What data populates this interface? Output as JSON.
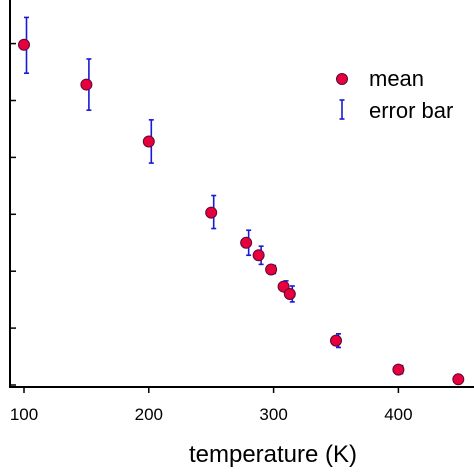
{
  "chart_data": {
    "type": "scatter",
    "xlabel": "temperature (K)",
    "ylabel": "",
    "xlim": [
      100,
      450
    ],
    "ylim": [
      0,
      6.6
    ],
    "x_ticks": [
      100,
      200,
      300,
      400
    ],
    "x_tick_labels": [
      "100",
      "200",
      "300",
      "400"
    ],
    "y_ticks": [
      0,
      1,
      2,
      3,
      4,
      5,
      6
    ],
    "legend": {
      "position": "top-right",
      "entries": [
        {
          "label": "mean",
          "marker": "circle"
        },
        {
          "label": "error bar",
          "marker": "errorbar"
        }
      ]
    },
    "colors": {
      "marker_fill": "#e8003d",
      "marker_edge": "#5a0a3a",
      "error_bar": "#1a1ad4"
    },
    "series": [
      {
        "name": "mean",
        "x": [
          100,
          150,
          200,
          250,
          278,
          288,
          298,
          308,
          313,
          350,
          400,
          448
        ],
        "y": [
          5.98,
          5.28,
          4.28,
          3.03,
          2.5,
          2.28,
          2.03,
          1.73,
          1.6,
          0.78,
          0.27,
          0.1
        ],
        "err_lower": [
          0.5,
          0.45,
          0.38,
          0.28,
          0.22,
          0.16,
          0.07,
          0.1,
          0.14,
          0.12,
          0.07,
          0.04
        ],
        "err_upper": [
          0.48,
          0.45,
          0.38,
          0.3,
          0.22,
          0.16,
          0.07,
          0.1,
          0.14,
          0.12,
          0.07,
          0.04
        ]
      }
    ]
  }
}
